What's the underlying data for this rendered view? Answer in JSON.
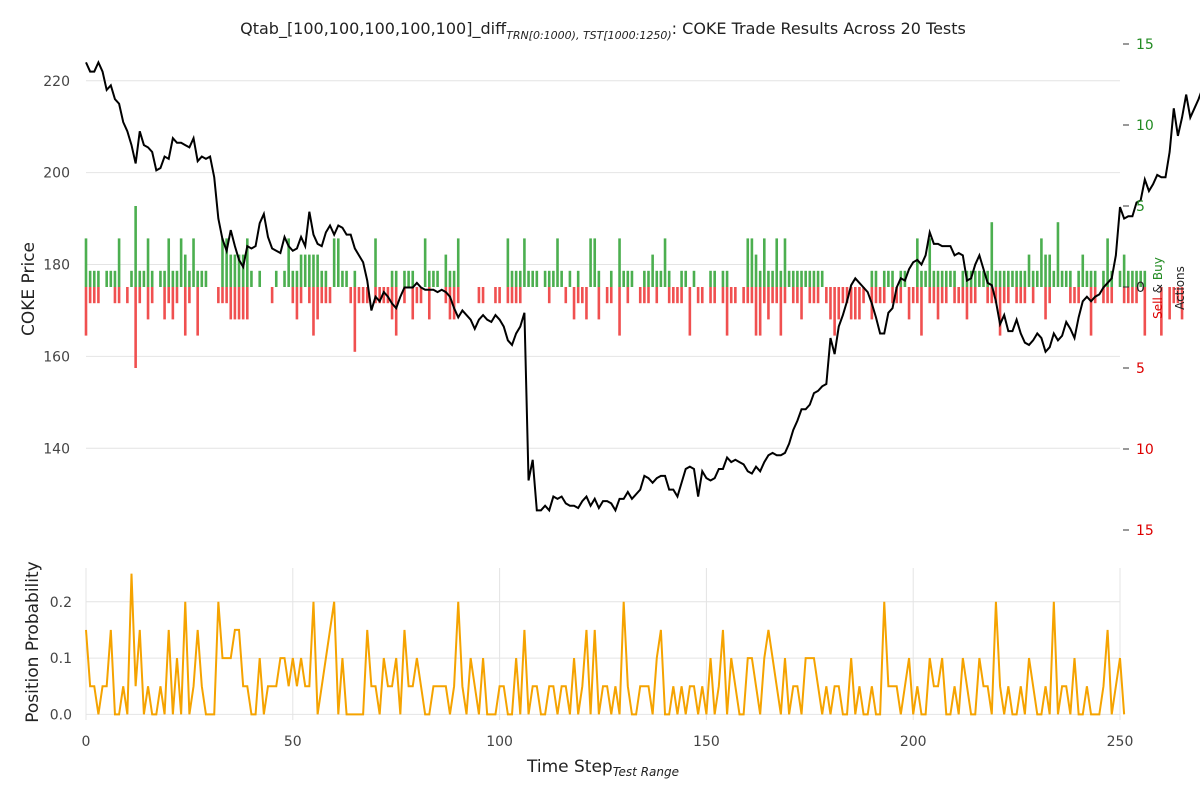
{
  "title": {
    "prefix": "Qtab_[100,100,100,100,100]_diff",
    "subscript": "TRN[0:1000), TST[1000:1250)",
    "suffix": ": COKE Trade Results Across 20 Tests"
  },
  "colors": {
    "price": "#000000",
    "buy": "#4caf50",
    "sell": "#f05050",
    "probability": "#f5a300",
    "grid": "#e4e4e4",
    "buy_label": "#228b22",
    "sell_label": "#dd0000"
  },
  "chart_data": [
    {
      "type": "line",
      "id": "price",
      "ylabel": "COKE Price",
      "ylim": [
        122,
        228
      ],
      "yticks": [
        140,
        160,
        180,
        200,
        220
      ],
      "x_start": 0,
      "x_step": 1,
      "values": [
        224,
        222,
        222,
        224,
        222,
        218,
        219,
        216,
        215,
        211,
        209,
        206,
        202,
        209,
        206,
        205.5,
        204.5,
        200.5,
        201,
        203.5,
        203,
        207.5,
        206.5,
        206.5,
        206,
        205.5,
        207.5,
        202.5,
        203.5,
        203,
        203.5,
        199,
        190,
        185.5,
        183,
        187.5,
        184,
        181,
        179.5,
        184,
        183.5,
        184,
        189,
        191,
        186,
        183.5,
        183,
        182.5,
        186,
        184,
        183,
        183.5,
        186,
        184,
        191.5,
        186.5,
        184.5,
        184,
        187,
        188.5,
        186.5,
        188.5,
        188,
        186.5,
        186.5,
        183.5,
        182,
        180.5,
        176.5,
        170,
        173,
        172,
        174,
        173,
        171.5,
        170.5,
        173,
        175,
        175,
        175,
        176,
        175,
        174.5,
        174.5,
        174.5,
        174,
        174.5,
        174,
        173,
        170.5,
        168.5,
        170,
        169,
        168,
        166,
        168,
        169,
        168,
        167.5,
        169,
        168,
        166.5,
        163.5,
        162.5,
        165,
        166.5,
        169.5,
        133,
        137.5,
        126.5,
        126.5,
        127.5,
        126.5,
        129.5,
        129,
        129.5,
        128,
        127.5,
        127.5,
        127,
        128.5,
        129.5,
        127.5,
        129,
        127,
        128.5,
        128.5,
        128,
        126.5,
        129,
        129,
        130.5,
        129,
        130,
        131,
        134,
        133.5,
        132.5,
        133.5,
        134,
        134,
        131,
        131,
        129.5,
        132.5,
        135.5,
        136,
        135.5,
        129.5,
        135,
        133.5,
        133,
        133.5,
        135.5,
        135.5,
        138,
        137,
        137.5,
        137,
        136.5,
        135,
        134.5,
        136,
        135,
        137,
        138.5,
        139,
        138.5,
        138.5,
        139,
        141,
        144,
        146,
        148.5,
        148.5,
        149.5,
        152,
        152.5,
        153.5,
        154,
        164,
        160.5,
        166.5,
        169,
        172,
        175.5,
        177,
        176,
        175,
        174,
        171.5,
        168.5,
        165,
        165,
        169.5,
        170.5,
        175,
        177,
        176.5,
        179,
        180.5,
        181,
        180,
        182,
        187,
        184.5,
        184.5,
        184,
        184,
        184,
        182,
        182.5,
        182,
        176.5,
        177,
        180,
        182,
        179,
        176,
        175.5,
        172,
        167,
        169,
        165.5,
        165.5,
        168,
        165,
        163,
        162.5,
        163.5,
        165,
        164,
        161,
        162,
        165,
        163.5,
        164.5,
        167.5,
        166,
        164,
        168.5,
        172,
        173,
        172,
        173,
        173.5,
        175,
        176,
        177,
        182,
        192.5,
        190,
        190.5,
        190.5,
        193.5,
        194,
        198.5,
        196,
        197.5,
        199.5,
        199,
        199,
        204.5,
        214,
        208,
        212,
        217,
        212,
        214,
        216,
        218.5,
        219,
        213,
        217,
        216,
        210.5
      ]
    },
    {
      "type": "bar",
      "id": "actions",
      "ylabel_sell": "Sell",
      "ylabel_and": "&",
      "ylabel_buy": "Buy",
      "ylabel_actions": "Actions",
      "ylim": [
        -15,
        15
      ],
      "yticks": [
        15,
        10,
        5,
        0,
        5,
        10,
        15
      ],
      "x_start": 0,
      "buy_values": [
        3,
        1,
        1,
        1,
        0,
        1,
        1,
        1,
        3,
        0,
        0,
        1,
        5,
        1,
        1,
        3,
        1,
        0,
        1,
        1,
        3,
        1,
        1,
        3,
        2,
        1,
        3,
        1,
        1,
        1,
        0,
        0,
        0,
        3,
        3,
        2,
        2,
        2,
        2,
        3,
        1,
        0,
        1,
        0,
        0,
        0,
        1,
        0,
        1,
        3,
        1,
        1,
        2,
        2,
        2,
        2,
        2,
        1,
        1,
        0,
        3,
        3,
        1,
        1,
        0,
        1,
        0,
        0,
        0,
        0,
        3,
        0,
        0,
        0,
        1,
        1,
        0,
        1,
        1,
        1,
        0,
        0,
        3,
        1,
        1,
        1,
        0,
        2,
        1,
        1,
        3,
        0,
        0,
        0,
        0,
        0,
        0,
        0,
        0,
        0,
        0,
        0,
        3,
        1,
        1,
        1,
        3,
        1,
        1,
        1,
        0,
        1,
        1,
        1,
        3,
        1,
        0,
        1,
        0,
        1,
        0,
        0,
        3,
        3,
        1,
        0,
        0,
        1,
        0,
        3,
        1,
        1,
        1,
        0,
        0,
        1,
        1,
        2,
        1,
        1,
        3,
        1,
        0,
        0,
        1,
        1,
        0,
        1,
        0,
        0,
        0,
        1,
        1,
        0,
        1,
        1,
        0,
        0,
        0,
        0,
        3,
        3,
        2,
        1,
        3,
        1,
        1,
        3,
        1,
        3,
        1,
        1,
        1,
        1,
        1,
        1,
        1,
        1,
        1,
        0,
        0,
        0,
        0,
        0,
        0,
        0,
        0,
        0,
        0,
        0,
        1,
        1,
        0,
        1,
        1,
        1,
        0,
        1,
        1,
        0,
        0,
        3,
        1,
        1,
        3,
        1,
        1,
        1,
        1,
        1,
        1,
        0,
        1,
        1,
        1,
        1,
        1,
        1,
        1,
        4,
        1,
        1,
        1,
        1,
        1,
        1,
        1,
        1,
        2,
        1,
        1,
        3,
        2,
        2,
        1,
        4,
        1,
        1,
        1,
        0,
        1,
        2,
        1,
        1,
        1,
        0,
        1,
        3,
        1,
        0,
        1,
        2,
        1,
        1,
        1,
        1,
        1
      ],
      "sell_values": [
        3,
        1,
        1,
        1,
        0,
        0,
        0,
        1,
        1,
        0,
        1,
        0,
        5,
        1,
        0,
        2,
        1,
        0,
        0,
        2,
        1,
        2,
        1,
        0,
        3,
        1,
        0,
        3,
        0,
        0,
        0,
        0,
        1,
        1,
        1,
        2,
        2,
        2,
        2,
        2,
        0,
        0,
        0,
        0,
        0,
        1,
        0,
        0,
        0,
        0,
        1,
        2,
        1,
        0,
        1,
        3,
        2,
        1,
        1,
        1,
        0,
        0,
        0,
        0,
        1,
        4,
        1,
        1,
        1,
        0,
        1,
        1,
        1,
        1,
        2,
        3,
        0,
        1,
        0,
        2,
        1,
        1,
        0,
        2,
        0,
        0,
        0,
        1,
        2,
        2,
        1,
        0,
        0,
        0,
        0,
        1,
        1,
        0,
        0,
        1,
        1,
        0,
        1,
        1,
        1,
        1,
        0,
        0,
        0,
        0,
        0,
        0,
        1,
        0,
        0,
        0,
        1,
        0,
        2,
        1,
        1,
        2,
        0,
        0,
        2,
        0,
        1,
        1,
        0,
        3,
        0,
        1,
        0,
        0,
        1,
        1,
        1,
        0,
        1,
        0,
        0,
        1,
        1,
        1,
        1,
        0,
        3,
        0,
        1,
        1,
        0,
        1,
        1,
        0,
        1,
        3,
        1,
        1,
        0,
        1,
        1,
        1,
        3,
        3,
        1,
        2,
        1,
        1,
        3,
        1,
        0,
        1,
        1,
        2,
        0,
        1,
        1,
        1,
        0,
        1,
        2,
        3,
        2,
        1,
        1,
        2,
        2,
        2,
        1,
        0,
        2,
        1,
        1,
        1,
        0,
        1,
        1,
        1,
        0,
        2,
        1,
        1,
        3,
        0,
        1,
        1,
        2,
        1,
        1,
        0,
        1,
        1,
        1,
        2,
        1,
        1,
        0,
        0,
        1,
        1,
        1,
        3,
        1,
        1,
        0,
        1,
        1,
        1,
        0,
        1,
        0,
        0,
        2,
        1,
        0,
        0,
        0,
        0,
        1,
        1,
        1,
        0,
        0,
        3,
        1,
        0,
        1,
        1,
        1,
        0,
        0,
        1,
        1,
        1,
        1,
        0,
        3,
        0,
        0,
        0,
        3,
        0,
        2,
        1,
        1,
        2
      ]
    },
    {
      "type": "line",
      "id": "probability",
      "ylabel": "Position Probability",
      "xlabel": "Time Step",
      "xlabel_sub": "Test Range",
      "xlim": [
        0,
        250
      ],
      "xticks": [
        0,
        50,
        100,
        150,
        200,
        250
      ],
      "ylim": [
        -0.01,
        0.26
      ],
      "yticks": [
        0.0,
        0.1,
        0.2
      ],
      "x_start": 0,
      "values": [
        0.15,
        0.05,
        0.05,
        0,
        0.05,
        0.05,
        0.15,
        0,
        0,
        0.05,
        0,
        0.25,
        0.05,
        0.15,
        0,
        0.05,
        0,
        0,
        0.05,
        0,
        0.15,
        0,
        0.1,
        0,
        0.2,
        0,
        0.05,
        0.15,
        0.05,
        0,
        0,
        0,
        0.2,
        0.1,
        0.1,
        0.1,
        0.15,
        0.15,
        0.05,
        0.05,
        0,
        0,
        0.1,
        0,
        0.05,
        0.05,
        0.05,
        0.1,
        0.1,
        0.05,
        0.1,
        0.05,
        0.1,
        0.05,
        0.05,
        0.2,
        0,
        0.05,
        0.1,
        0.15,
        0.2,
        0,
        0.1,
        0,
        0,
        0,
        0,
        0,
        0.15,
        0.05,
        0.05,
        0,
        0.1,
        0.05,
        0.05,
        0.1,
        0,
        0.15,
        0.05,
        0.05,
        0.1,
        0.05,
        0,
        0,
        0.05,
        0.05,
        0.05,
        0.05,
        0,
        0.05,
        0.2,
        0.05,
        0,
        0.1,
        0.05,
        0,
        0.1,
        0,
        0,
        0,
        0.05,
        0.05,
        0,
        0,
        0.1,
        0,
        0.15,
        0,
        0.05,
        0.05,
        0,
        0,
        0.05,
        0.05,
        0,
        0.05,
        0.05,
        0,
        0.1,
        0,
        0.05,
        0.15,
        0,
        0.15,
        0,
        0.05,
        0.05,
        0,
        0.05,
        0,
        0.2,
        0.05,
        0,
        0,
        0.05,
        0.05,
        0.05,
        0,
        0.1,
        0.15,
        0,
        0,
        0.05,
        0,
        0.05,
        0,
        0.05,
        0.05,
        0,
        0.05,
        0,
        0.1,
        0,
        0.05,
        0.15,
        0,
        0.1,
        0.05,
        0,
        0,
        0.1,
        0.1,
        0.05,
        0,
        0.1,
        0.15,
        0.1,
        0.05,
        0,
        0.1,
        0,
        0.05,
        0.05,
        0,
        0.1,
        0.1,
        0.1,
        0.05,
        0,
        0.05,
        0,
        0.05,
        0.05,
        0,
        0,
        0.1,
        0,
        0.05,
        0,
        0,
        0.05,
        0,
        0,
        0.2,
        0.05,
        0.05,
        0.05,
        0,
        0.05,
        0.1,
        0,
        0.05,
        0,
        0,
        0.1,
        0.05,
        0.05,
        0.1,
        0,
        0,
        0.05,
        0,
        0.1,
        0.05,
        0,
        0,
        0.1,
        0.05,
        0.05,
        0,
        0.2,
        0.05,
        0,
        0.05,
        0,
        0,
        0.05,
        0,
        0.1,
        0.05,
        0,
        0,
        0.05,
        0,
        0.2,
        0,
        0.05,
        0.05,
        0,
        0.1,
        0,
        0,
        0.05,
        0,
        0,
        0,
        0.05,
        0.15,
        0,
        0.05,
        0.1,
        0
      ]
    }
  ]
}
